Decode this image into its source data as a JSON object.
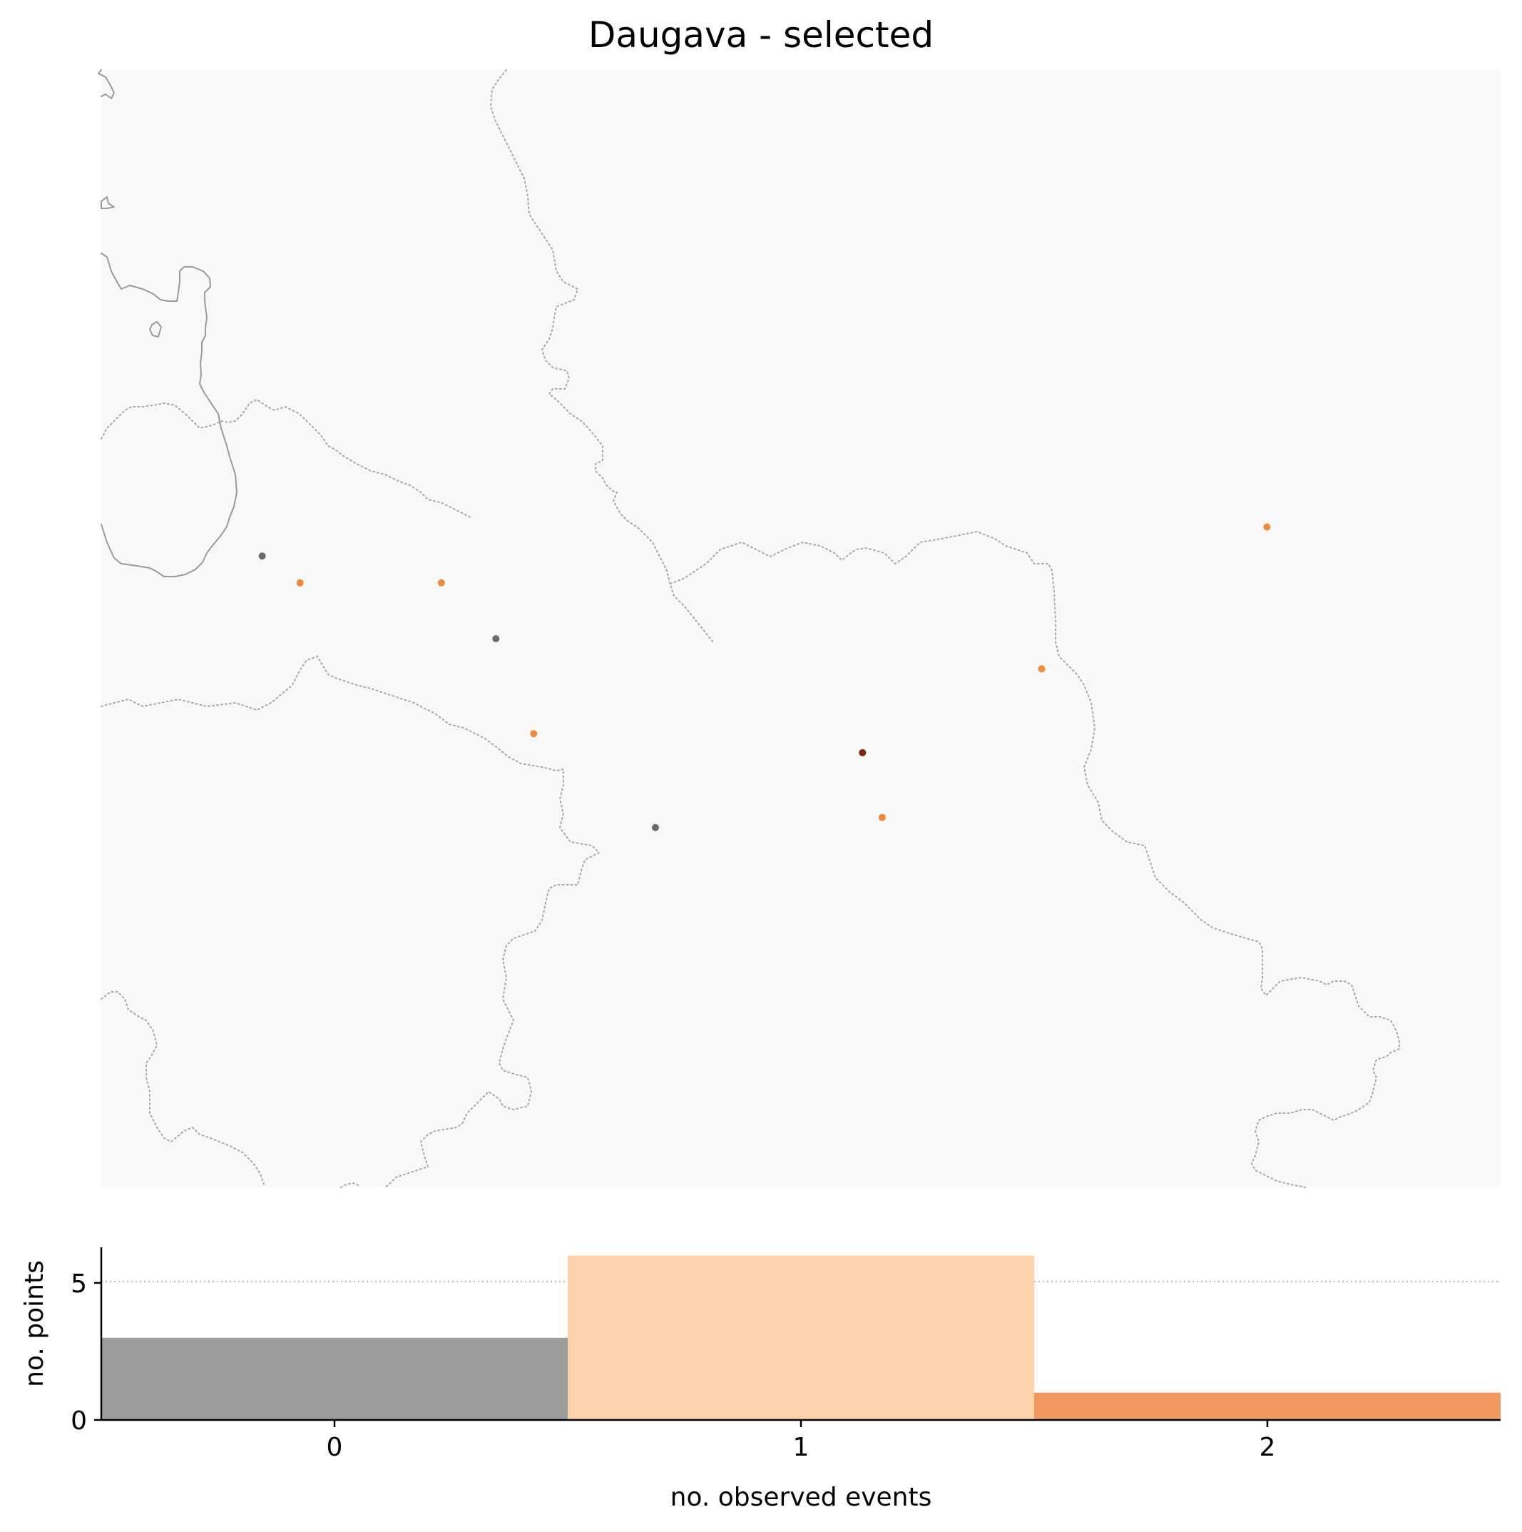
{
  "title": "Daugava - selected",
  "colors": {
    "map_background": "#f8f8f8",
    "coastline": "#9a9a9a",
    "border": "#a8a8a8",
    "count_0": "#6b6b6b",
    "count_1": "#ee8a3d",
    "count_2": "#7a2a10",
    "bar_0": "#9c9c9c",
    "bar_1": "#fbd2aa",
    "bar_2": "#f09a62",
    "gridline": "#bbbbbb"
  },
  "chart_data": [
    {
      "type": "scatter",
      "name": "map",
      "points": [
        {
          "x": 0.115,
          "y": 0.565,
          "count": 0
        },
        {
          "x": 0.142,
          "y": 0.541,
          "count": 1
        },
        {
          "x": 0.243,
          "y": 0.541,
          "count": 1
        },
        {
          "x": 0.282,
          "y": 0.491,
          "count": 0
        },
        {
          "x": 0.309,
          "y": 0.406,
          "count": 1
        },
        {
          "x": 0.396,
          "y": 0.322,
          "count": 0
        },
        {
          "x": 0.544,
          "y": 0.389,
          "count": 2
        },
        {
          "x": 0.558,
          "y": 0.331,
          "count": 1
        },
        {
          "x": 0.672,
          "y": 0.464,
          "count": 1
        },
        {
          "x": 0.833,
          "y": 0.591,
          "count": 1
        }
      ]
    },
    {
      "type": "bar",
      "name": "histogram",
      "categories": [
        "0",
        "1",
        "2"
      ],
      "values": [
        3,
        6,
        1
      ],
      "xlabel": "no. observed events",
      "ylabel": "no. points",
      "xlim": [
        -0.5,
        2.5
      ],
      "ylim": [
        0,
        6.3
      ],
      "xticks": [
        "0",
        "1",
        "2"
      ],
      "yticks": [
        "0",
        "5"
      ],
      "grid_lines_y": [
        5
      ]
    }
  ]
}
